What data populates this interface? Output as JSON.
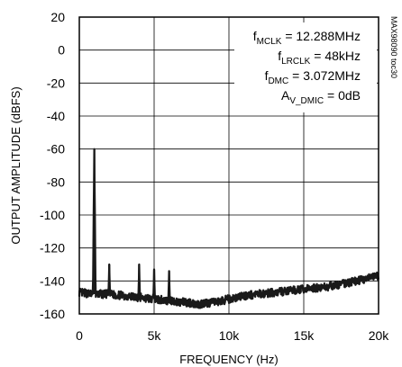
{
  "chart_data": {
    "type": "line",
    "title": "",
    "xlabel": "FREQUENCY (Hz)",
    "ylabel": "OUTPUT AMPLITUDE (dBFS)",
    "xlim": [
      0,
      20000
    ],
    "ylim": [
      -160,
      20
    ],
    "x_ticks": [
      0,
      5000,
      10000,
      15000,
      20000
    ],
    "x_tick_labels": [
      "0",
      "5k",
      "10k",
      "15k",
      "20k"
    ],
    "y_ticks": [
      20,
      0,
      -20,
      -40,
      -60,
      -80,
      -100,
      -120,
      -140,
      -160
    ],
    "y_tick_labels": [
      "20",
      "0",
      "-20",
      "-40",
      "-60",
      "-80",
      "-100",
      "-120",
      "-140",
      "-160"
    ],
    "grid": true,
    "annotations": [
      {
        "main": "f",
        "sub": "MCLK",
        "rest": " = 12.288MHz"
      },
      {
        "main": "f",
        "sub": "LRCLK",
        "rest": " = 48kHz"
      },
      {
        "main": "f",
        "sub": "DMC",
        "rest": " = 3.072MHz"
      },
      {
        "main": "A",
        "sub": "V_DMIC",
        "rest": " = 0dB"
      }
    ],
    "part_id": "MAX98090 toc30",
    "series": [
      {
        "values": {
          "fundamental": {
            "x": 1000,
            "y": -60
          },
          "harmonics": [
            {
              "x": 2000,
              "y": -130
            },
            {
              "x": 4000,
              "y": -130
            },
            {
              "x": 5000,
              "y": -133
            },
            {
              "x": 6000,
              "y": -134
            }
          ],
          "noise_floor": [
            [
              0,
              -147
            ],
            [
              1000,
              -148
            ],
            [
              2000,
              -148
            ],
            [
              3000,
              -149
            ],
            [
              4000,
              -150
            ],
            [
              5000,
              -151
            ],
            [
              6000,
              -152
            ],
            [
              7000,
              -153
            ],
            [
              8000,
              -154
            ],
            [
              9000,
              -153
            ],
            [
              10000,
              -151
            ],
            [
              11000,
              -149
            ],
            [
              12000,
              -148
            ],
            [
              13000,
              -147
            ],
            [
              14000,
              -146
            ],
            [
              15000,
              -145
            ],
            [
              16000,
              -144
            ],
            [
              17000,
              -143
            ],
            [
              18000,
              -141
            ],
            [
              19000,
              -139
            ],
            [
              20000,
              -137
            ]
          ],
          "noise_spread_db": 5
        }
      }
    ]
  }
}
